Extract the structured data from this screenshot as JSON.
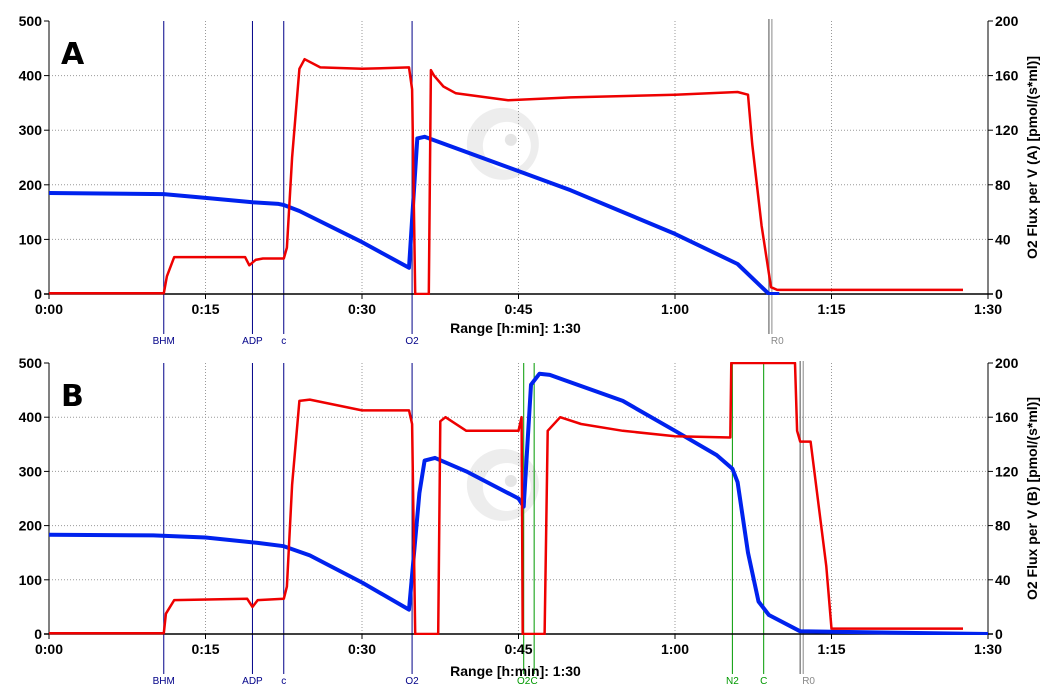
{
  "colors": {
    "o2_concentration": "#0022ee",
    "o2_flux": "#ee0000",
    "event_blue": "#000088",
    "event_green": "#009900",
    "event_gray": "#888888",
    "grid": "#999999"
  },
  "chart_data": [
    {
      "panel": "A",
      "type": "line",
      "xlabel": "Range [h:min]: 1:30",
      "ylabel_right": "O2 Flux per V (A) [pmol/(s*ml)]",
      "x_ticks": [
        "0:00",
        "0:15",
        "0:30",
        "0:45",
        "1:00",
        "1:15",
        "1:30"
      ],
      "y_left_ticks": [
        "0",
        "100",
        "200",
        "300",
        "400",
        "500"
      ],
      "y_right_ticks": [
        "0",
        "40",
        "80",
        "120",
        "160",
        "200"
      ],
      "xlim": [
        0,
        90
      ],
      "ylim_left": [
        0,
        500
      ],
      "ylim_right": [
        0,
        200
      ],
      "events": [
        {
          "label": "BHM",
          "t": 11,
          "color": "blue"
        },
        {
          "label": "ADP",
          "t": 19.5,
          "color": "blue"
        },
        {
          "label": "c",
          "t": 22.5,
          "color": "blue"
        },
        {
          "label": "O2",
          "t": 34.8,
          "color": "blue"
        },
        {
          "label": "R0",
          "t": 69,
          "color": "gray"
        }
      ],
      "series": [
        {
          "role": "o2_concentration",
          "axis": "left",
          "points": [
            [
              0,
              185
            ],
            [
              5,
              184
            ],
            [
              11,
              183
            ],
            [
              15,
              176
            ],
            [
              19.5,
              168
            ],
            [
              22,
              165
            ],
            [
              22.5,
              163
            ],
            [
              24,
              152
            ],
            [
              30,
              95
            ],
            [
              34.5,
              48
            ],
            [
              35.3,
              285
            ],
            [
              36,
              288
            ],
            [
              40,
              260
            ],
            [
              50,
              190
            ],
            [
              60,
              110
            ],
            [
              66,
              55
            ],
            [
              69,
              0
            ],
            [
              70,
              0
            ]
          ]
        },
        {
          "role": "o2_flux",
          "axis": "right",
          "points": [
            [
              0,
              0.5
            ],
            [
              10,
              0.5
            ],
            [
              11,
              0.5
            ],
            [
              11.3,
              13
            ],
            [
              12,
              27
            ],
            [
              16,
              27
            ],
            [
              18.8,
              27
            ],
            [
              19.2,
              21
            ],
            [
              19.8,
              25
            ],
            [
              20.5,
              26
            ],
            [
              22.5,
              26
            ],
            [
              22.8,
              34
            ],
            [
              23.3,
              100
            ],
            [
              24,
              165
            ],
            [
              24.5,
              172
            ],
            [
              26,
              166
            ],
            [
              30,
              165
            ],
            [
              34.5,
              166
            ],
            [
              34.8,
              150
            ],
            [
              35.1,
              0
            ],
            [
              36.4,
              0
            ],
            [
              36.6,
              164
            ],
            [
              36.9,
              160
            ],
            [
              37.8,
              152
            ],
            [
              39,
              147
            ],
            [
              44,
              142
            ],
            [
              50,
              144
            ],
            [
              60,
              146
            ],
            [
              66,
              148
            ],
            [
              67,
              146
            ],
            [
              67.4,
              110
            ],
            [
              68.3,
              50
            ],
            [
              69.2,
              5
            ],
            [
              69.8,
              3
            ],
            [
              80,
              3
            ],
            [
              87.6,
              3
            ]
          ]
        }
      ]
    },
    {
      "panel": "B",
      "type": "line",
      "xlabel": "Range [h:min]: 1:30",
      "ylabel_right": "O2 Flux per V (B) [pmol/(s*ml)]",
      "x_ticks": [
        "0:00",
        "0:15",
        "0:30",
        "0:45",
        "1:00",
        "1:15",
        "1:30"
      ],
      "y_left_ticks": [
        "0",
        "100",
        "200",
        "300",
        "400",
        "500"
      ],
      "y_right_ticks": [
        "0",
        "40",
        "80",
        "120",
        "160",
        "200"
      ],
      "xlim": [
        0,
        90
      ],
      "ylim_left": [
        0,
        500
      ],
      "ylim_right": [
        0,
        200
      ],
      "events": [
        {
          "label": "BHM",
          "t": 11,
          "color": "blue"
        },
        {
          "label": "ADP",
          "t": 19.5,
          "color": "blue"
        },
        {
          "label": "c",
          "t": 22.5,
          "color": "blue"
        },
        {
          "label": "O2",
          "t": 34.8,
          "color": "blue"
        },
        {
          "label": "O2",
          "t": 45.5,
          "color": "green"
        },
        {
          "label": "C",
          "t": 46.5,
          "color": "green"
        },
        {
          "label": "N2",
          "t": 65.5,
          "color": "green"
        },
        {
          "label": "C",
          "t": 68.5,
          "color": "green"
        },
        {
          "label": "R0",
          "t": 72,
          "color": "gray"
        }
      ],
      "series": [
        {
          "role": "o2_concentration",
          "axis": "left",
          "points": [
            [
              0,
              183
            ],
            [
              10,
              182
            ],
            [
              15,
              178
            ],
            [
              20,
              168
            ],
            [
              22.5,
              162
            ],
            [
              25,
              145
            ],
            [
              30,
              95
            ],
            [
              34.5,
              45
            ],
            [
              35.5,
              260
            ],
            [
              36,
              320
            ],
            [
              37,
              325
            ],
            [
              40,
              300
            ],
            [
              45,
              250
            ],
            [
              45.5,
              235
            ],
            [
              46.2,
              460
            ],
            [
              47,
              480
            ],
            [
              48,
              478
            ],
            [
              55,
              430
            ],
            [
              60,
              375
            ],
            [
              64,
              330
            ],
            [
              65.5,
              305
            ],
            [
              66,
              280
            ],
            [
              67,
              150
            ],
            [
              68,
              60
            ],
            [
              69,
              35
            ],
            [
              72,
              5
            ],
            [
              90,
              0
            ]
          ]
        },
        {
          "role": "o2_flux",
          "axis": "right",
          "points": [
            [
              0,
              0.5
            ],
            [
              11,
              0.5
            ],
            [
              11.2,
              15
            ],
            [
              12,
              25
            ],
            [
              19,
              26
            ],
            [
              19.5,
              20
            ],
            [
              20,
              25
            ],
            [
              22.5,
              26
            ],
            [
              22.8,
              35
            ],
            [
              23.3,
              110
            ],
            [
              24,
              172
            ],
            [
              25,
              173
            ],
            [
              30,
              165
            ],
            [
              34.5,
              165
            ],
            [
              34.8,
              155
            ],
            [
              35.1,
              0
            ],
            [
              37.3,
              0
            ],
            [
              37.5,
              157
            ],
            [
              38,
              160
            ],
            [
              40,
              150
            ],
            [
              45,
              150
            ],
            [
              45.3,
              160
            ],
            [
              45.4,
              0
            ],
            [
              47.5,
              0
            ],
            [
              47.8,
              150
            ],
            [
              49,
              160
            ],
            [
              51,
              155
            ],
            [
              55,
              150
            ],
            [
              60,
              146
            ],
            [
              65.3,
              145
            ],
            [
              65.4,
              200
            ],
            [
              71.5,
              200
            ],
            [
              71.7,
              150
            ],
            [
              72,
              142
            ],
            [
              73,
              142
            ],
            [
              74.5,
              50
            ],
            [
              75,
              4
            ],
            [
              87.6,
              4
            ]
          ]
        }
      ]
    }
  ]
}
